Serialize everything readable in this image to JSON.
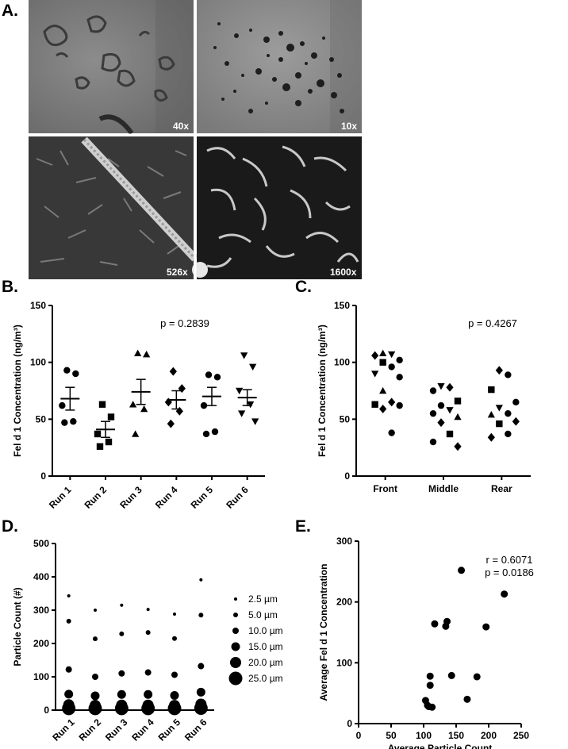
{
  "panels": {
    "a": "A.",
    "b": "B.",
    "c": "C.",
    "d": "D.",
    "e": "E."
  },
  "micrographs": [
    {
      "mag": "40x"
    },
    {
      "mag": "10x"
    },
    {
      "mag": "526x"
    },
    {
      "mag": "1600x"
    }
  ],
  "chart_data": [
    {
      "panel": "B",
      "type": "scatter",
      "ylabel": "Fel d 1 Concentration (ng/m³)",
      "ylim": [
        0,
        150
      ],
      "yticks": [
        0,
        50,
        100,
        150
      ],
      "categories": [
        "Run 1",
        "Run 2",
        "Run 3",
        "Run 4",
        "Run 5",
        "Run 6"
      ],
      "markers": [
        "circle",
        "square",
        "triangle",
        "diamond",
        "circle",
        "triangle-down"
      ],
      "points": [
        [
          93,
          90,
          62,
          48,
          47
        ],
        [
          63,
          52,
          37,
          30,
          26
        ],
        [
          108,
          107,
          63,
          59,
          37
        ],
        [
          92,
          77,
          65,
          57,
          46
        ],
        [
          89,
          87,
          62,
          39,
          37
        ],
        [
          106,
          96,
          75,
          63,
          55,
          48
        ]
      ],
      "means": [
        68,
        41,
        74,
        67,
        70,
        69
      ],
      "sem": [
        10,
        7,
        11,
        8,
        8,
        7
      ],
      "annotation": "p = 0.2839",
      "grid": false
    },
    {
      "panel": "C",
      "type": "scatter",
      "ylabel": "Fel d 1 Concentration (ng/m³)",
      "ylim": [
        0,
        150
      ],
      "yticks": [
        0,
        50,
        100,
        150
      ],
      "categories": [
        "Front",
        "Middle",
        "Rear"
      ],
      "points": [
        [
          108,
          107,
          106,
          102,
          100,
          96,
          90,
          87,
          75,
          65,
          63,
          62,
          59,
          38
        ],
        [
          79,
          78,
          75,
          66,
          62,
          58,
          55,
          52,
          47,
          37,
          30,
          26
        ],
        [
          93,
          89,
          76,
          65,
          60,
          55,
          54,
          48,
          46,
          37,
          34
        ]
      ],
      "annotation": "p = 0.4267",
      "grid": false
    },
    {
      "panel": "D",
      "type": "scatter",
      "ylabel": "Particle Count (#)",
      "ylim": [
        0,
        500
      ],
      "yticks": [
        0,
        100,
        200,
        300,
        400,
        500
      ],
      "categories": [
        "Run 1",
        "Run 2",
        "Run 3",
        "Run 4",
        "Run 5",
        "Run 6"
      ],
      "series": [
        {
          "name": "2.5 µm",
          "values": [
            343,
            300,
            315,
            302,
            288,
            391
          ]
        },
        {
          "name": "5.0 µm",
          "values": [
            267,
            214,
            229,
            233,
            215,
            285
          ]
        },
        {
          "name": "10.0 µm",
          "values": [
            122,
            100,
            110,
            113,
            106,
            132
          ]
        },
        {
          "name": "15.0 µm",
          "values": [
            48,
            43,
            47,
            47,
            44,
            54
          ]
        },
        {
          "name": "20.0 µm",
          "values": [
            16,
            14,
            15,
            15,
            14,
            18
          ]
        },
        {
          "name": "25.0 µm",
          "values": [
            5,
            5,
            5,
            5,
            5,
            6
          ]
        }
      ],
      "legend_position": "right",
      "grid": false
    },
    {
      "panel": "E",
      "type": "scatter",
      "xlabel": "Average Particle Count",
      "ylabel": "Average Fel d 1 Concentration",
      "xlim": [
        0,
        250
      ],
      "ylim": [
        0,
        300
      ],
      "xticks": [
        0,
        50,
        100,
        150,
        200,
        250
      ],
      "yticks": [
        0,
        100,
        200,
        300
      ],
      "x": [
        158,
        224,
        117,
        136,
        134,
        196,
        110,
        110,
        143,
        182,
        103,
        106,
        167,
        108,
        113
      ],
      "y": [
        252,
        213,
        164,
        168,
        160,
        159,
        78,
        63,
        79,
        77,
        38,
        30,
        40,
        28,
        27
      ],
      "annotations": [
        "r = 0.6071",
        "p = 0.0186"
      ],
      "grid": false
    }
  ]
}
